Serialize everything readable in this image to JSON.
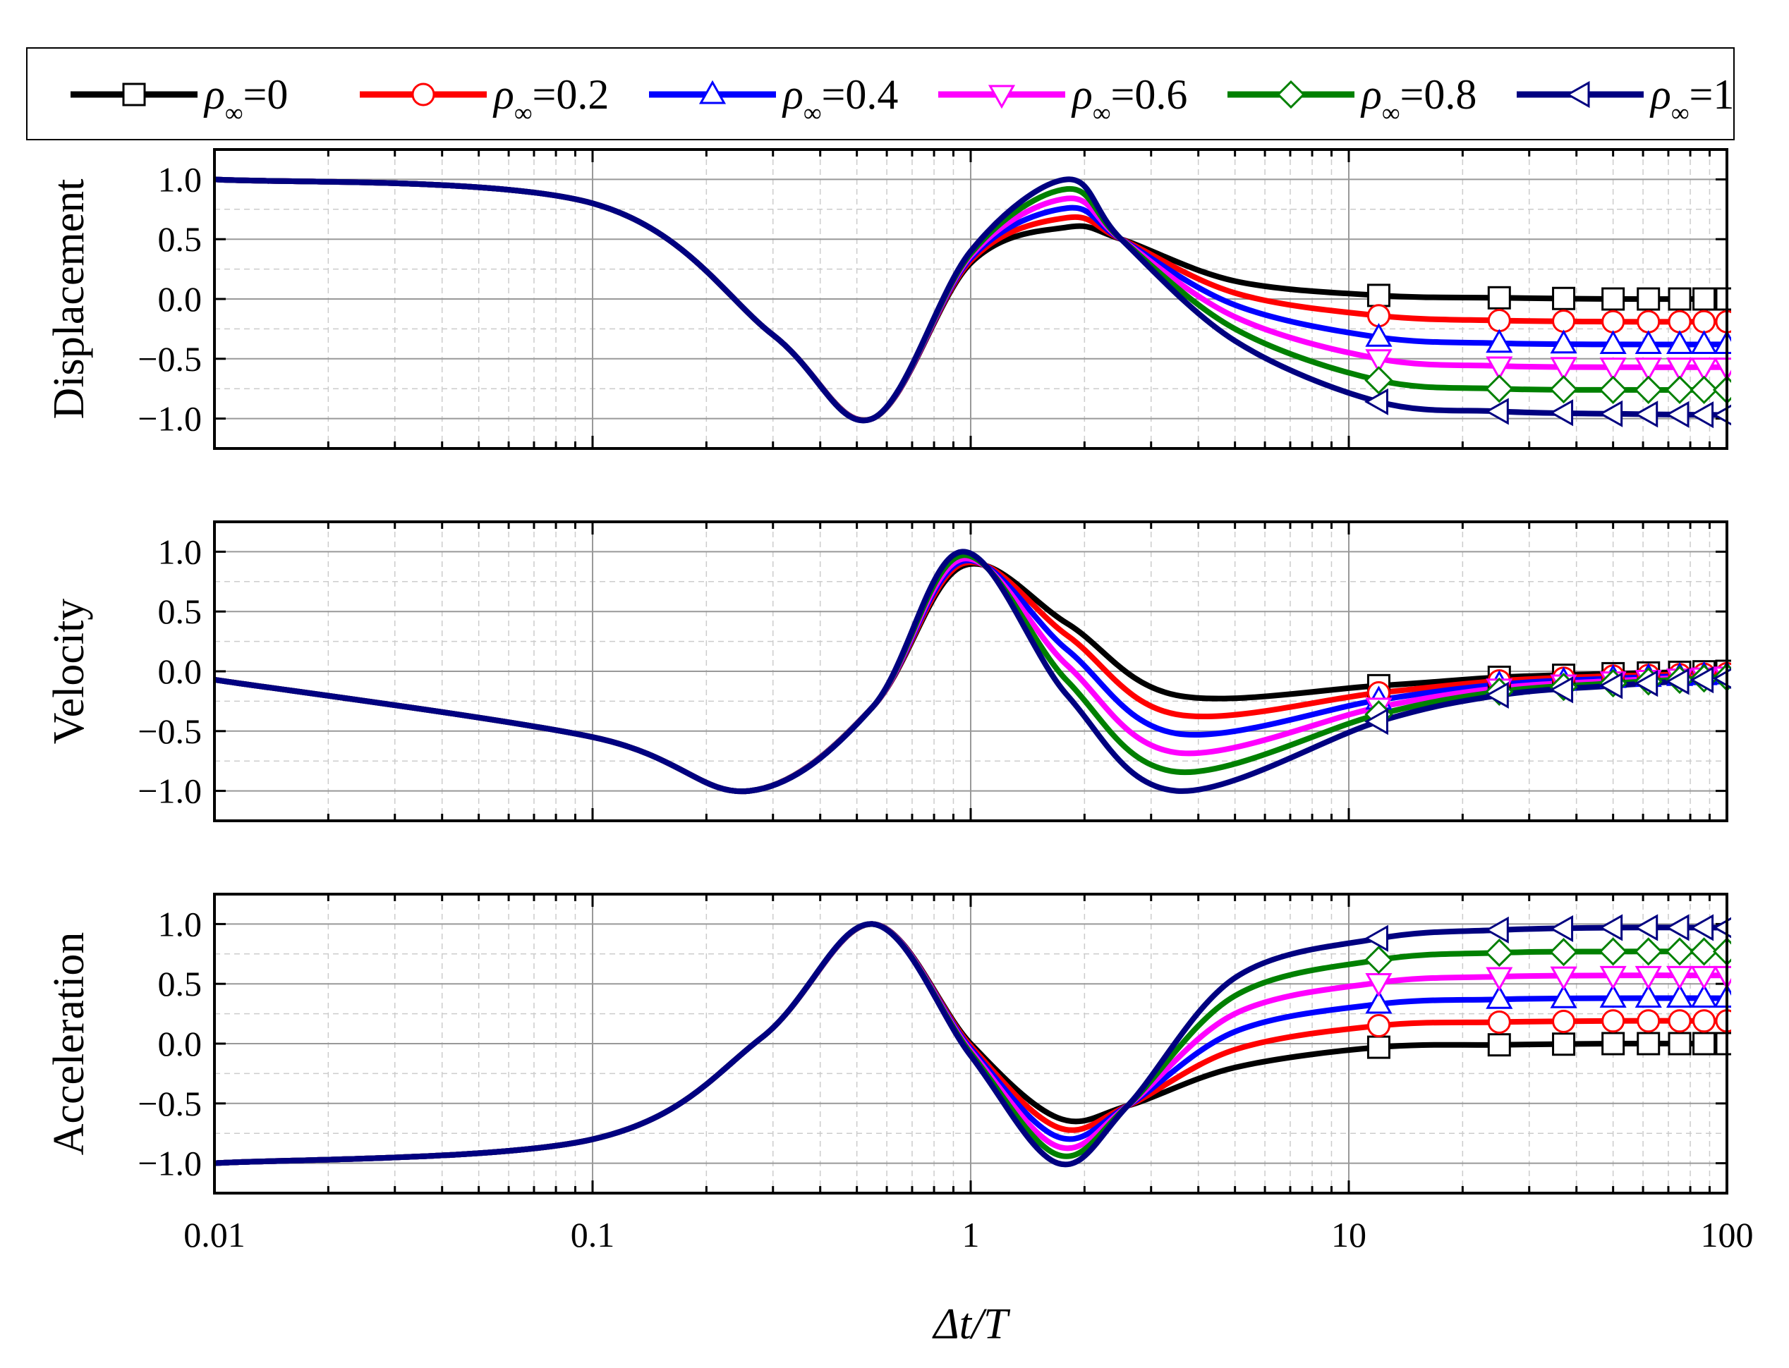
{
  "chart_data": [
    {
      "type": "line",
      "title": "",
      "ylabel": "Displacement",
      "xlabel": "",
      "xscale": "log",
      "xlim": [
        0.01,
        100
      ],
      "ylim": [
        -1.25,
        1.25
      ],
      "grid": true,
      "yticks": [
        "1.0",
        "0.5",
        "0.0",
        "−0.5",
        "−1.0"
      ],
      "x": [
        0.01,
        0.1,
        0.3,
        0.55,
        1,
        1.8,
        2.5,
        5,
        12,
        25,
        50,
        100
      ],
      "series": [
        {
          "name": "rho=0",
          "values": [
            1.0,
            0.8,
            -0.3,
            -1.0,
            0.3,
            0.6,
            0.5,
            0.15,
            0.03,
            0.01,
            0.0,
            0.0
          ]
        },
        {
          "name": "rho=0.2",
          "values": [
            1.0,
            0.8,
            -0.3,
            -1.0,
            0.32,
            0.68,
            0.5,
            0.05,
            -0.14,
            -0.18,
            -0.19,
            -0.19
          ]
        },
        {
          "name": "rho=0.4",
          "values": [
            1.0,
            0.8,
            -0.3,
            -1.0,
            0.34,
            0.76,
            0.5,
            -0.05,
            -0.32,
            -0.37,
            -0.38,
            -0.38
          ]
        },
        {
          "name": "rho=0.6",
          "values": [
            1.0,
            0.8,
            -0.3,
            -1.0,
            0.36,
            0.84,
            0.5,
            -0.15,
            -0.5,
            -0.56,
            -0.57,
            -0.57
          ]
        },
        {
          "name": "rho=0.8",
          "values": [
            1.0,
            0.8,
            -0.3,
            -1.0,
            0.38,
            0.92,
            0.5,
            -0.25,
            -0.68,
            -0.75,
            -0.76,
            -0.76
          ]
        },
        {
          "name": "rho=1",
          "values": [
            1.0,
            0.8,
            -0.3,
            -1.0,
            0.4,
            1.0,
            0.5,
            -0.35,
            -0.86,
            -0.94,
            -0.96,
            -0.97
          ]
        }
      ]
    },
    {
      "type": "line",
      "title": "",
      "ylabel": "Velocity",
      "xlabel": "",
      "xscale": "log",
      "xlim": [
        0.01,
        100
      ],
      "ylim": [
        -1.25,
        1.25
      ],
      "grid": true,
      "yticks": [
        "1.0",
        "0.5",
        "0.0",
        "−0.5",
        "−1.0"
      ],
      "x": [
        0.01,
        0.1,
        0.26,
        0.55,
        0.95,
        1.8,
        3.5,
        12,
        25,
        50,
        100
      ],
      "series": [
        {
          "name": "rho=0",
          "values": [
            -0.07,
            -0.55,
            -1.0,
            -0.3,
            0.88,
            0.4,
            -0.2,
            -0.12,
            -0.05,
            -0.02,
            0.0
          ]
        },
        {
          "name": "rho=0.2",
          "values": [
            -0.07,
            -0.55,
            -1.0,
            -0.3,
            0.9,
            0.3,
            -0.36,
            -0.18,
            -0.08,
            -0.04,
            -0.02
          ]
        },
        {
          "name": "rho=0.4",
          "values": [
            -0.07,
            -0.55,
            -1.0,
            -0.3,
            0.92,
            0.18,
            -0.52,
            -0.24,
            -0.11,
            -0.06,
            -0.03
          ]
        },
        {
          "name": "rho=0.6",
          "values": [
            -0.07,
            -0.55,
            -1.0,
            -0.3,
            0.94,
            0.05,
            -0.68,
            -0.3,
            -0.14,
            -0.08,
            -0.04
          ]
        },
        {
          "name": "rho=0.8",
          "values": [
            -0.07,
            -0.55,
            -1.0,
            -0.3,
            0.97,
            -0.08,
            -0.84,
            -0.36,
            -0.17,
            -0.1,
            -0.05
          ]
        },
        {
          "name": "rho=1",
          "values": [
            -0.07,
            -0.55,
            -1.0,
            -0.3,
            1.0,
            -0.2,
            -1.0,
            -0.42,
            -0.2,
            -0.12,
            -0.06
          ]
        }
      ]
    },
    {
      "type": "line",
      "title": "",
      "ylabel": "Acceleration",
      "xlabel": "Δt/T",
      "xscale": "log",
      "xlim": [
        0.01,
        100
      ],
      "ylim": [
        -1.25,
        1.25
      ],
      "grid": true,
      "yticks": [
        "1.0",
        "0.5",
        "0.0",
        "−0.5",
        "−1.0"
      ],
      "xticks": [
        "0.01",
        "0.1",
        "1",
        "10",
        "100"
      ],
      "x": [
        0.01,
        0.1,
        0.28,
        0.55,
        1,
        1.7,
        2.6,
        5,
        12,
        25,
        50,
        100
      ],
      "series": [
        {
          "name": "rho=0",
          "values": [
            -1.0,
            -0.8,
            0.05,
            1.0,
            0.0,
            -0.62,
            -0.52,
            -0.2,
            -0.03,
            -0.01,
            0.0,
            0.0
          ]
        },
        {
          "name": "rho=0.2",
          "values": [
            -1.0,
            -0.8,
            0.05,
            1.0,
            -0.02,
            -0.7,
            -0.52,
            -0.05,
            0.15,
            0.18,
            0.19,
            0.19
          ]
        },
        {
          "name": "rho=0.4",
          "values": [
            -1.0,
            -0.8,
            0.05,
            1.0,
            -0.04,
            -0.78,
            -0.52,
            0.1,
            0.33,
            0.37,
            0.38,
            0.38
          ]
        },
        {
          "name": "rho=0.6",
          "values": [
            -1.0,
            -0.8,
            0.05,
            1.0,
            -0.06,
            -0.86,
            -0.52,
            0.25,
            0.51,
            0.56,
            0.57,
            0.57
          ]
        },
        {
          "name": "rho=0.8",
          "values": [
            -1.0,
            -0.8,
            0.05,
            1.0,
            -0.08,
            -0.93,
            -0.52,
            0.4,
            0.7,
            0.76,
            0.77,
            0.77
          ]
        },
        {
          "name": "rho=1",
          "values": [
            -1.0,
            -0.8,
            0.05,
            1.0,
            -0.1,
            -1.0,
            -0.52,
            0.55,
            0.88,
            0.95,
            0.97,
            0.97
          ]
        }
      ]
    }
  ],
  "legend": {
    "placement": "top",
    "entries": [
      {
        "symbol": "ρ",
        "sub": "∞",
        "value": "=0",
        "color": "#000000",
        "marker": "square"
      },
      {
        "symbol": "ρ",
        "sub": "∞",
        "value": "=0.2",
        "color": "#ff0000",
        "marker": "circle"
      },
      {
        "symbol": "ρ",
        "sub": "∞",
        "value": "=0.4",
        "color": "#0000ff",
        "marker": "triangle-up"
      },
      {
        "symbol": "ρ",
        "sub": "∞",
        "value": "=0.6",
        "color": "#ff00ff",
        "marker": "triangle-down"
      },
      {
        "symbol": "ρ",
        "sub": "∞",
        "value": "=0.8",
        "color": "#008000",
        "marker": "diamond"
      },
      {
        "symbol": "ρ",
        "sub": "∞",
        "value": "=1",
        "color": "#000080",
        "marker": "triangle-left"
      }
    ]
  },
  "marker_x": [
    12,
    25,
    37,
    50,
    62,
    75,
    87,
    100
  ]
}
